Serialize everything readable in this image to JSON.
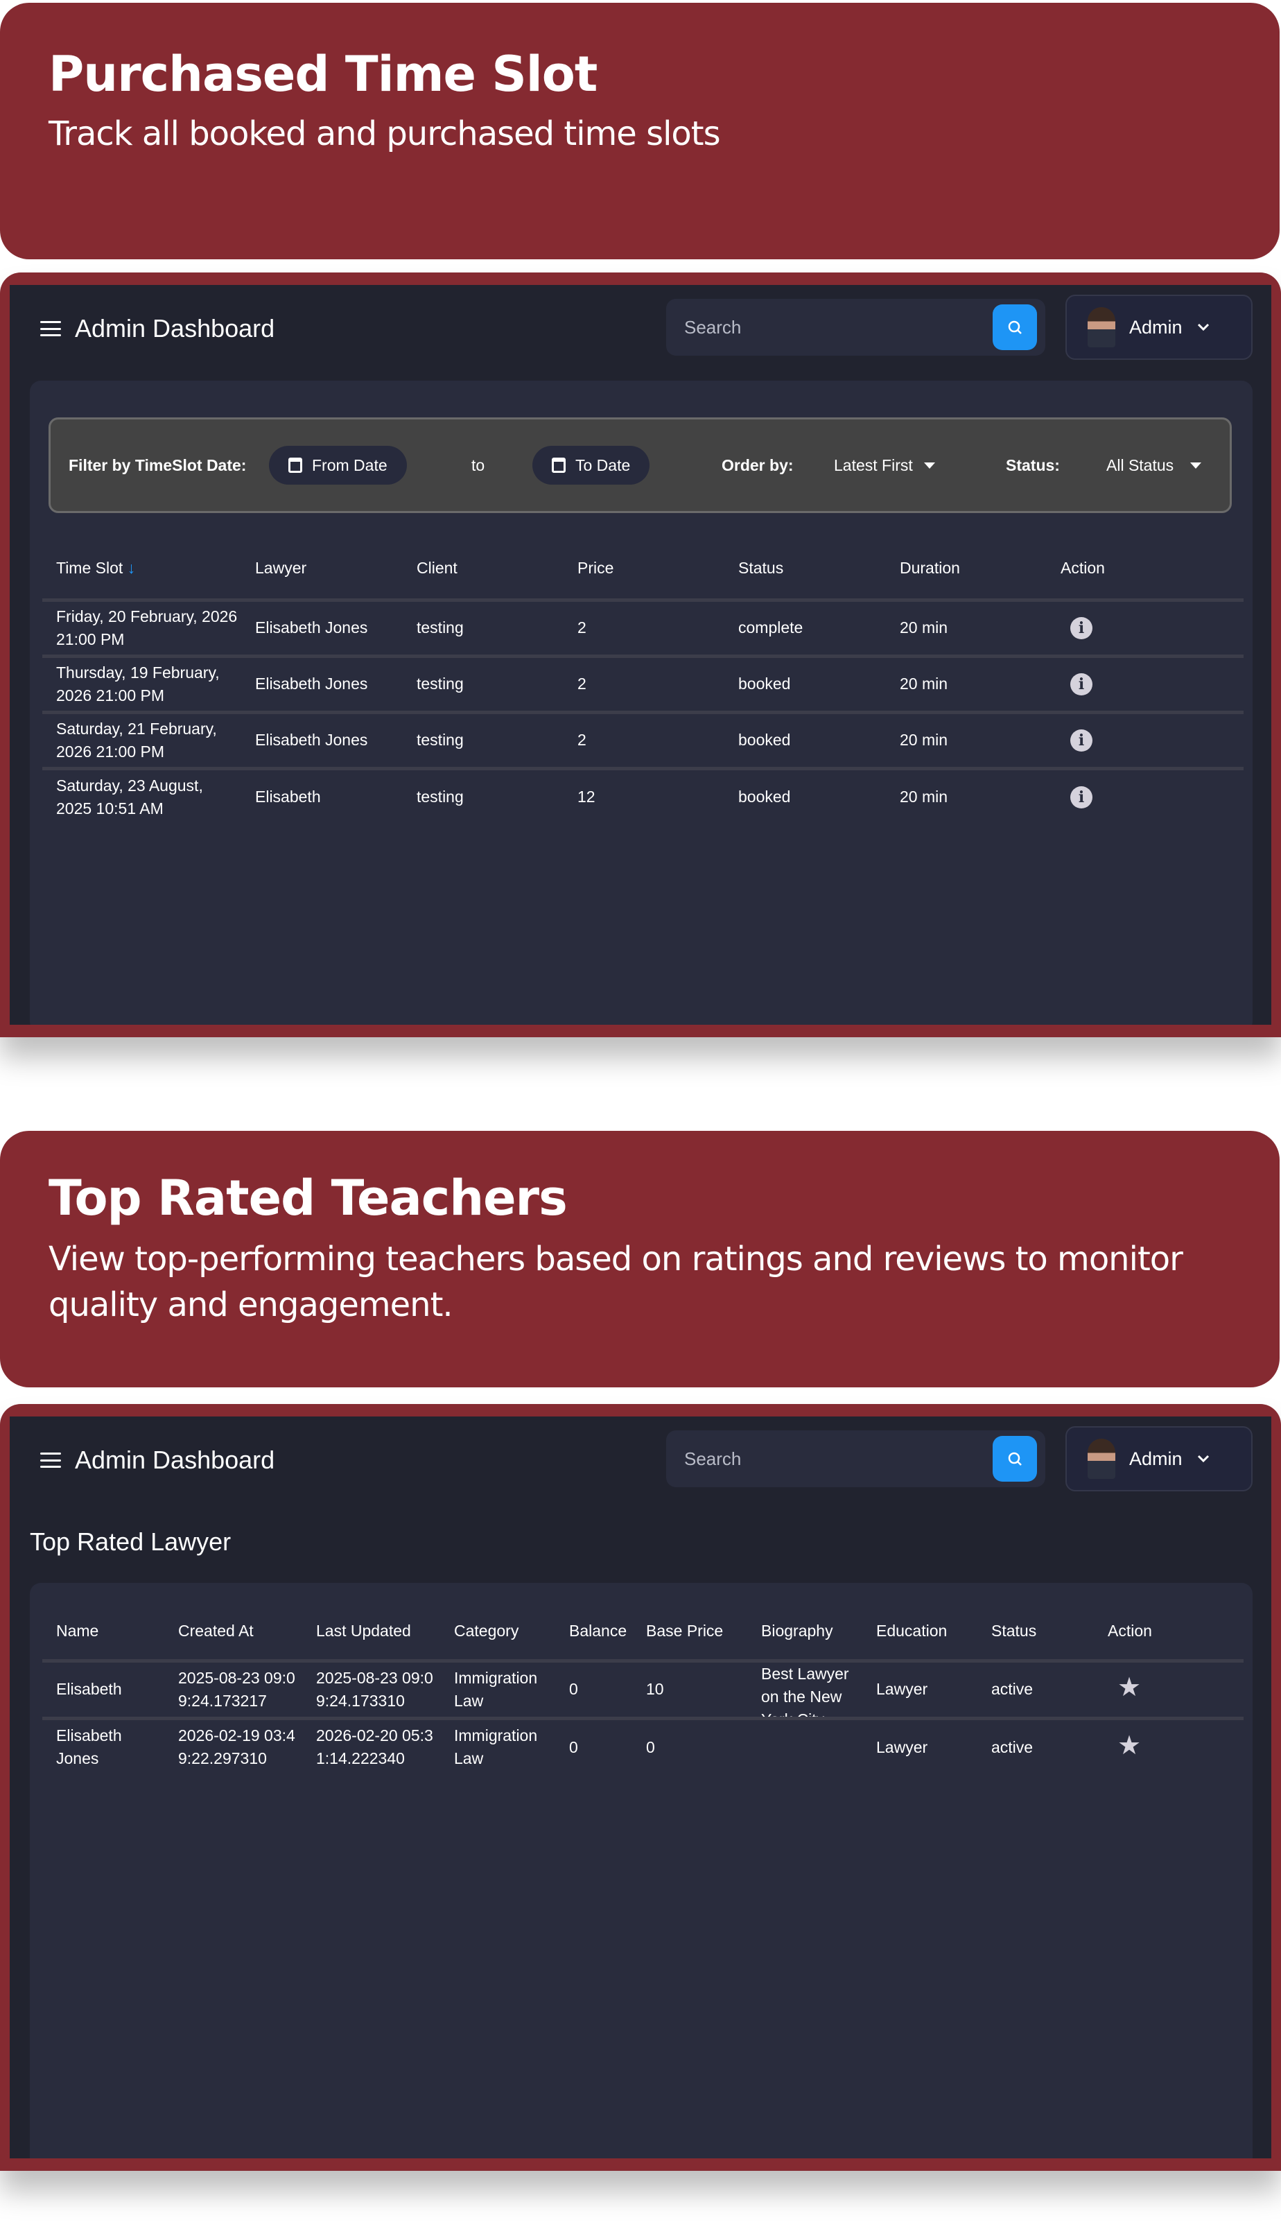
{
  "section1": {
    "title": "Purchased Time Slot",
    "subtitle": "Track all booked and purchased time slots"
  },
  "section2": {
    "title": "Top Rated Teachers",
    "subtitle": "View top-performing teachers based on ratings and reviews to monitor quality and engagement."
  },
  "navbar": {
    "title": "Admin Dashboard",
    "search_placeholder": "Search",
    "user": "Admin"
  },
  "filter": {
    "label": "Filter by TimeSlot Date:",
    "from": "From Date",
    "to_word": "to",
    "to": "To Date",
    "order_label": "Order by:",
    "order_value": "Latest First",
    "status_label": "Status:",
    "status_value": "All Status"
  },
  "timeslots": {
    "columns": [
      "Time Slot",
      "Lawyer",
      "Client",
      "Price",
      "Status",
      "Duration",
      "Action"
    ],
    "rows": [
      {
        "slot": "Friday, 20 February, 2026 21:00 PM",
        "lawyer": "Elisabeth Jones",
        "client": "testing",
        "price": "2",
        "status": "complete",
        "duration": "20 min"
      },
      {
        "slot": "Thursday, 19 February, 2026 21:00 PM",
        "lawyer": "Elisabeth Jones",
        "client": "testing",
        "price": "2",
        "status": "booked",
        "duration": "20 min"
      },
      {
        "slot": "Saturday, 21 February, 2026 21:00 PM",
        "lawyer": "Elisabeth Jones",
        "client": "testing",
        "price": "2",
        "status": "booked",
        "duration": "20 min"
      },
      {
        "slot": "Saturday, 23 August, 2025 10:51 AM",
        "lawyer": "Elisabeth",
        "client": "testing",
        "price": "12",
        "status": "booked",
        "duration": "20 min"
      }
    ]
  },
  "top_rated": {
    "heading": "Top Rated Lawyer",
    "columns": [
      "Name",
      "Created At",
      "Last Updated",
      "Category",
      "Balance",
      "Base Price",
      "Biography",
      "Education",
      "Status",
      "Action"
    ],
    "rows": [
      {
        "name": "Elisabeth",
        "created": "2025-08-23 09:09:24.173217",
        "updated": "2025-08-23 09:09:24.173310",
        "category": "Immigration Law",
        "balance": "0",
        "base_price": "10",
        "bio": "Best Lawyer on the New York City",
        "education": "Lawyer",
        "status": "active"
      },
      {
        "name": "Elisabeth Jones",
        "created": "2026-02-19 03:49:22.297310",
        "updated": "2026-02-20 05:31:14.222340",
        "category": "Immigration Law",
        "balance": "0",
        "base_price": "0",
        "bio": "",
        "education": "Lawyer",
        "status": "active"
      }
    ]
  },
  "colors": {
    "brand": "#852a31",
    "accent": "#1e95f5",
    "bg": "#21232f",
    "panel": "#292c3d"
  }
}
